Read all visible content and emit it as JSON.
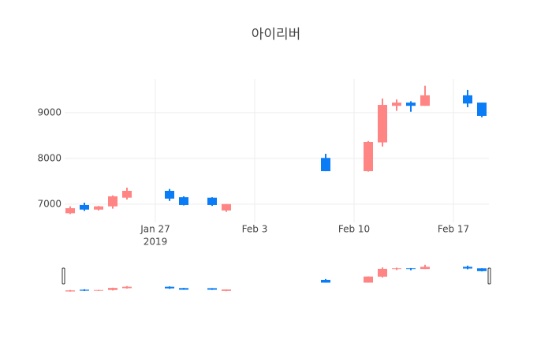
{
  "chart_data": {
    "type": "candlestick",
    "title": "아이리버",
    "x": [
      "2019-01-21",
      "2019-01-22",
      "2019-01-23",
      "2019-01-24",
      "2019-01-25",
      "2019-01-28",
      "2019-01-29",
      "2019-01-31",
      "2019-02-01",
      "2019-02-08",
      "2019-02-11",
      "2019-02-12",
      "2019-02-13",
      "2019-02-14",
      "2019-02-15",
      "2019-02-18",
      "2019-02-19"
    ],
    "open": [
      6800,
      6980,
      6880,
      6950,
      7140,
      7290,
      7150,
      7140,
      6860,
      8010,
      7720,
      8350,
      9150,
      9220,
      9150,
      9380,
      9220
    ],
    "high": [
      6950,
      7030,
      6960,
      7190,
      7360,
      7330,
      7170,
      7150,
      7000,
      8100,
      8380,
      9310,
      9290,
      9250,
      9590,
      9500,
      9220
    ],
    "low": [
      6780,
      6850,
      6860,
      6900,
      7100,
      7070,
      6970,
      6960,
      6830,
      7720,
      7710,
      8260,
      9040,
      9020,
      9150,
      9120,
      8900
    ],
    "close": [
      6910,
      6880,
      6950,
      7170,
      7290,
      7120,
      6980,
      6980,
      7000,
      7720,
      8360,
      9170,
      9220,
      9150,
      9380,
      9200,
      8930
    ],
    "increasing_color": "#ff8585",
    "decreasing_color": "#0a7cf5",
    "xlim": [
      "2019-01-20T14:40:00Z",
      "2019-02-19T12:00:00Z"
    ],
    "xticks": [
      {
        "value": "2019-01-27",
        "label": "Jan 27"
      },
      {
        "value": "2019-02-03",
        "label": "Feb 3"
      },
      {
        "value": "2019-02-10",
        "label": "Feb 10"
      },
      {
        "value": "2019-02-17",
        "label": "Feb 17"
      }
    ],
    "x_year_label": "2019",
    "ylim": [
      6600,
      9740
    ],
    "yticks": [
      7000,
      8000,
      9000
    ],
    "grid": true,
    "rangeslider": true
  }
}
